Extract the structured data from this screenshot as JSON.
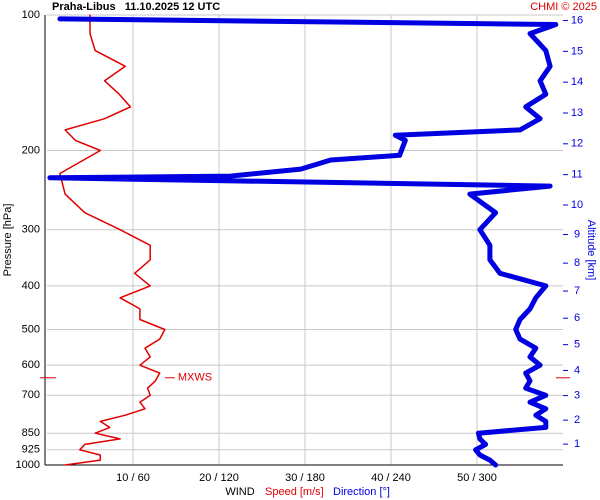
{
  "chart_data": {
    "type": "wind-profile",
    "title": "Praha-Libus   11.10.2025 12 UTC",
    "credit": "CHMI © 2025",
    "y_label": "Pressure [hPa]",
    "y2_label": "Altitude [km]",
    "x_label": "WIND",
    "log_y": true,
    "grid": true,
    "ylim": [
      100,
      1000
    ],
    "yticks": [
      100,
      200,
      300,
      400,
      500,
      600,
      700,
      850,
      925,
      1000
    ],
    "y2ticks": [
      1,
      2,
      3,
      4,
      5,
      6,
      7,
      8,
      9,
      10,
      11,
      12,
      13,
      14,
      15,
      16
    ],
    "xlim": [
      0,
      60
    ],
    "x2lim": [
      0,
      360
    ],
    "xticks": [
      {
        "value": 10,
        "label": "10 / 60"
      },
      {
        "value": 20,
        "label": "20 / 120"
      },
      {
        "value": 30,
        "label": "30 / 180"
      },
      {
        "value": 40,
        "label": "40 / 240"
      },
      {
        "value": 50,
        "label": "50 / 300"
      }
    ],
    "series": [
      {
        "name": "Speed [m/s]",
        "color": "#e00000",
        "pressure": [
          1000,
          975,
          950,
          925,
          900,
          875,
          850,
          825,
          800,
          775,
          750,
          725,
          700,
          675,
          650,
          625,
          600,
          575,
          550,
          525,
          500,
          475,
          450,
          425,
          400,
          375,
          350,
          325,
          300,
          275,
          250,
          225,
          200,
          190,
          180,
          170,
          160,
          150,
          140,
          130,
          120,
          110,
          100
        ],
        "values": [
          2.1,
          6.2,
          6.2,
          3.8,
          4.4,
          8.5,
          5.6,
          7.3,
          6.2,
          9.1,
          11.4,
          10.8,
          12,
          11.7,
          12.6,
          13.1,
          10.8,
          12,
          11.4,
          13.1,
          13.7,
          10.8,
          10.8,
          8.5,
          12,
          10.2,
          12,
          12,
          8.5,
          4.4,
          2.1,
          1.5,
          6.2,
          3.3,
          2.1,
          6.7,
          9.7,
          8.4,
          6.7,
          9.1,
          5.6,
          5,
          5
        ]
      },
      {
        "name": "Direction [°]",
        "color": "#0000e0",
        "axis": "x2",
        "pressure": [
          1000,
          975,
          950,
          925,
          900,
          875,
          850,
          825,
          800,
          775,
          750,
          725,
          700,
          675,
          650,
          625,
          600,
          575,
          550,
          525,
          500,
          475,
          450,
          425,
          400,
          375,
          350,
          325,
          300,
          275,
          250,
          240,
          230,
          228,
          220,
          210,
          205,
          190,
          185,
          180,
          170,
          160,
          150,
          140,
          130,
          120,
          110,
          105,
          102
        ],
        "values": [
          313,
          309,
          302,
          299,
          306,
          302,
          301,
          348,
          348,
          341,
          348,
          337,
          348,
          334,
          337,
          334,
          344,
          337,
          341,
          330,
          327,
          330,
          337,
          341,
          348,
          316,
          309,
          309,
          302,
          313,
          295,
          351,
          2,
          128,
          177,
          198,
          246,
          250,
          243,
          330,
          344,
          334,
          348,
          344,
          351,
          348,
          337,
          355,
          9
        ]
      }
    ],
    "annotation": {
      "label": "MXWS",
      "pressure": 640,
      "value": 13.7
    }
  }
}
